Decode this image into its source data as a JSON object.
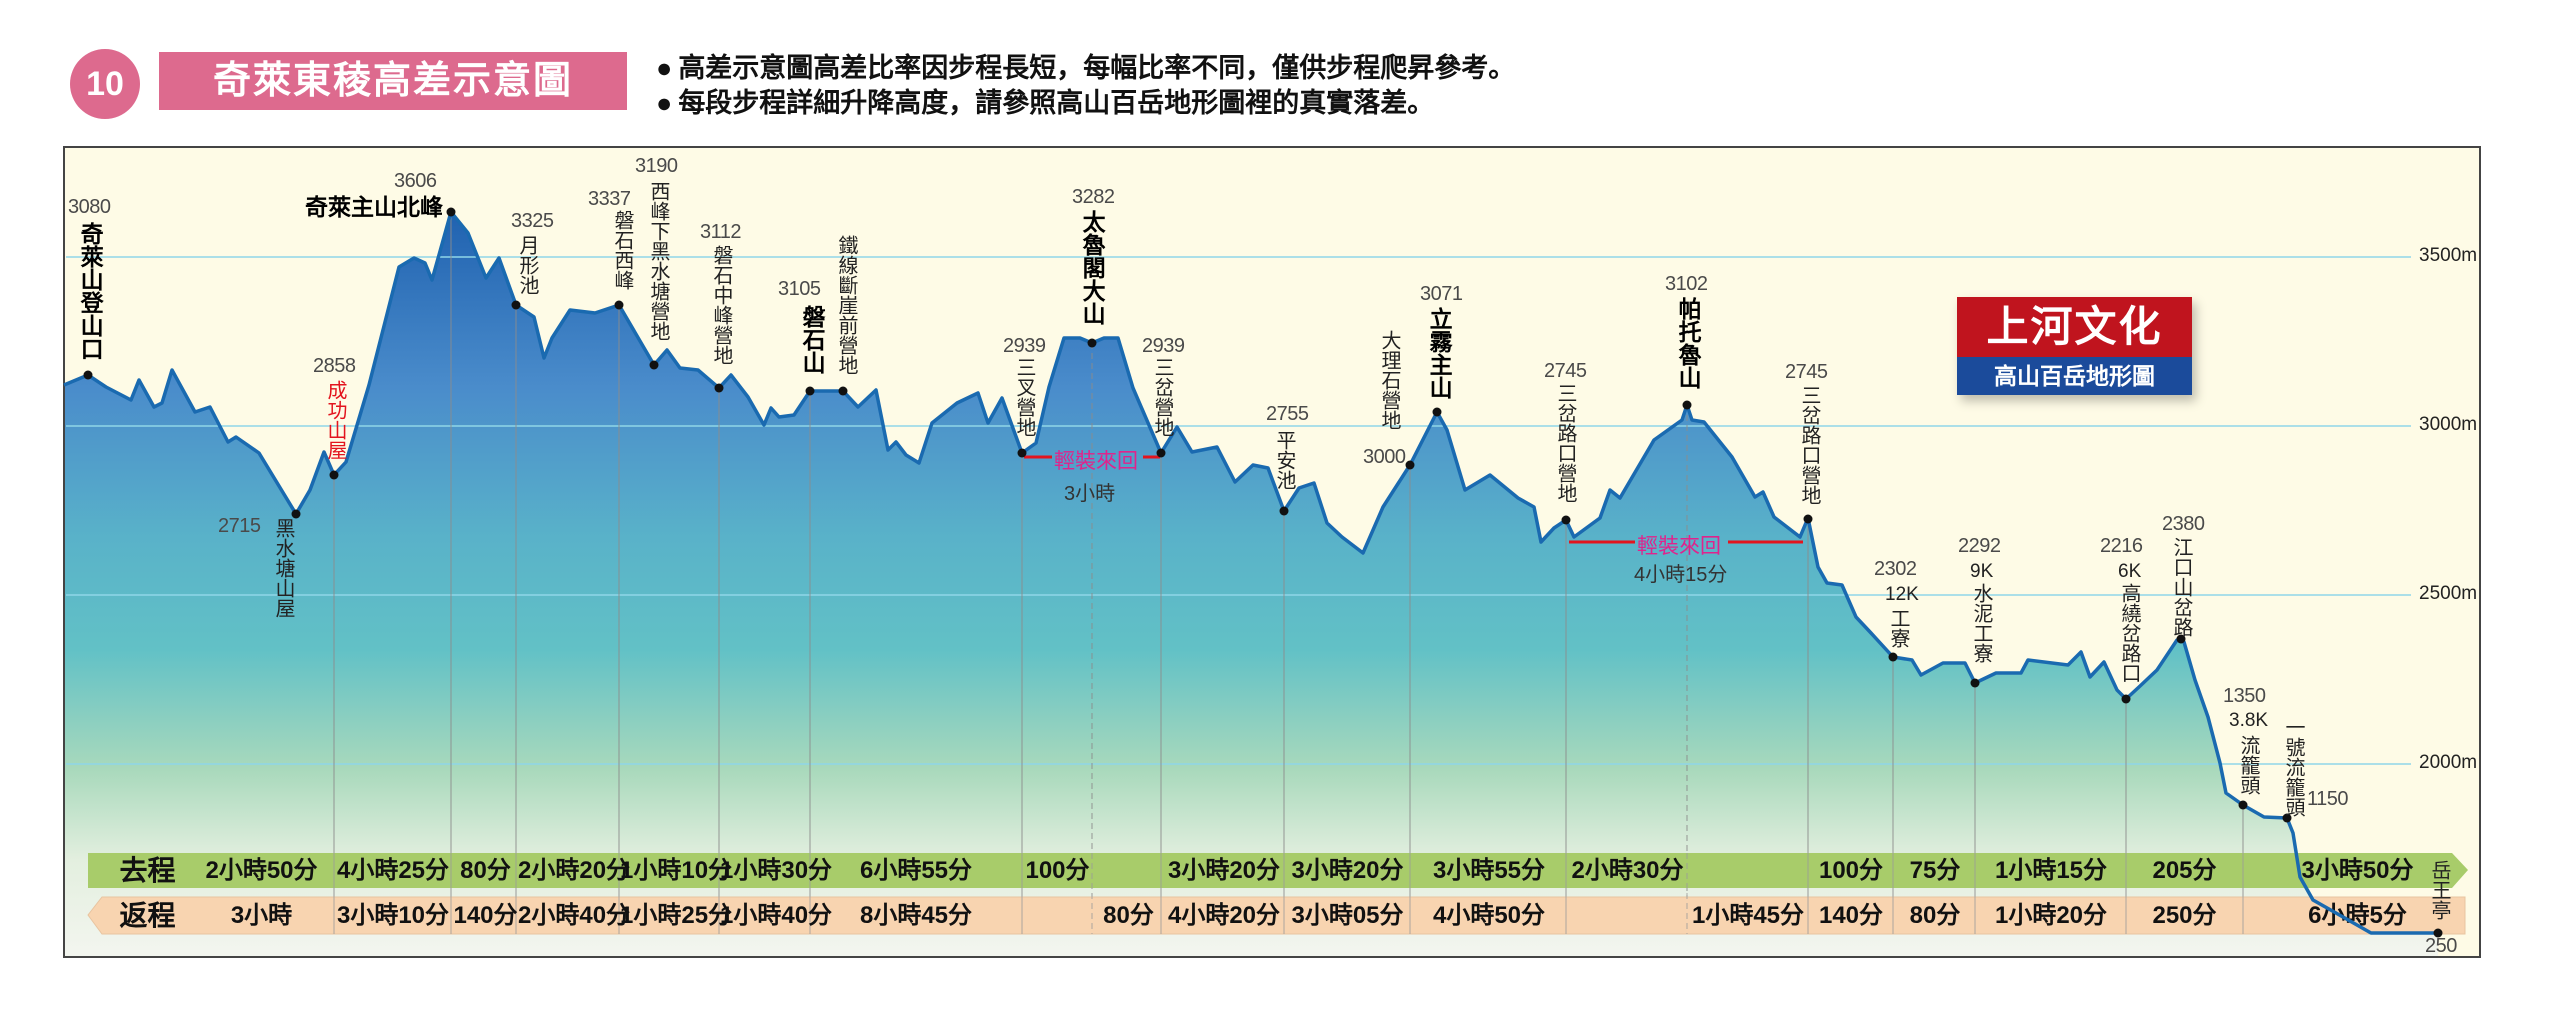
{
  "header": {
    "number": "10",
    "title": "奇萊東稜高差示意圖",
    "notes": [
      "高差示意圖高差比率因步程長短，每幅比率不同，僅供步程爬昇參考。",
      "每段步程詳細升降高度，請參照高山百岳地形圖裡的真實落差。"
    ]
  },
  "logo": {
    "brand": "上河文化",
    "subtitle": "高山百岳地形圖"
  },
  "colors": {
    "accent_pink": "#dd6a8e",
    "profile_line": "#1a6ab0",
    "outbound_band": "#a8cc6a",
    "return_band": "#f8d4b0",
    "highlight_red": "#e3141e",
    "round_trip_magenta": "#e0238c"
  },
  "chart_data": {
    "type": "area",
    "title": "奇萊東稜高差示意圖",
    "y_axis": {
      "unit": "m",
      "ticks": [
        "3500m",
        "3000m",
        "2500m",
        "2000m"
      ],
      "tick_values": [
        3500,
        3000,
        2500,
        2000
      ]
    },
    "waypoints": [
      {
        "name": "奇萊山登山口",
        "elevation": 3080
      },
      {
        "name": "黑水塘山屋",
        "elevation": 2715
      },
      {
        "name": "成功山屋",
        "elevation": 2858
      },
      {
        "name": "奇萊主山北峰",
        "elevation": 3606
      },
      {
        "name": "月形池",
        "elevation": 3325
      },
      {
        "name": "磐石西峰",
        "elevation": 3337
      },
      {
        "name": "西峰下黑水塘營地",
        "elevation": 3190
      },
      {
        "name": "磐石中峰營地",
        "elevation": 3112
      },
      {
        "name": "磐石山",
        "elevation": 3105
      },
      {
        "name": "鐵線斷崖前營地",
        "elevation": null
      },
      {
        "name": "三叉營地",
        "elevation": 2939
      },
      {
        "name": "太魯閣大山",
        "elevation": 3282
      },
      {
        "name": "三岔營地",
        "elevation": 2939
      },
      {
        "name": "平安池",
        "elevation": 2755
      },
      {
        "name": "大理石營地",
        "elevation": 3000
      },
      {
        "name": "立霧主山",
        "elevation": 3071
      },
      {
        "name": "三岔路口營地",
        "elevation": 2745
      },
      {
        "name": "帕托魯山",
        "elevation": 3102
      },
      {
        "name": "三岔路口營地",
        "elevation": 2745
      },
      {
        "name": "工寮",
        "elevation": 2302,
        "km": "12K"
      },
      {
        "name": "水泥工寮",
        "elevation": 2292,
        "km": "9K"
      },
      {
        "name": "高繞岔路口",
        "elevation": 2216,
        "km": "6K"
      },
      {
        "name": "江口山岔路",
        "elevation": 2380
      },
      {
        "name": "流籠頭",
        "elevation": 1350,
        "km": "3.8K"
      },
      {
        "name": "一號流籠頭",
        "elevation": 1150
      },
      {
        "name": "岳王亭",
        "elevation": 250
      }
    ],
    "round_trips": [
      {
        "label": "輕裝來回",
        "time": "3小時",
        "from": "三叉營地",
        "to": "三岔營地"
      },
      {
        "label": "輕裝來回",
        "time": "4小時15分",
        "from": "三岔路口營地",
        "to": "三岔路口營地"
      }
    ],
    "outbound": {
      "label": "去程",
      "segments": [
        "2小時50分",
        "4小時25分",
        "80分",
        "2小時20分",
        "1小時10分",
        "1小時30分",
        "6小時55分",
        "100分",
        "",
        "3小時20分",
        "3小時20分",
        "3小時55分",
        "2小時30分",
        "",
        "100分",
        "75分",
        "1小時15分",
        "205分",
        "3小時50分"
      ]
    },
    "return": {
      "label": "返程",
      "segments": [
        "3小時",
        "3小時10分",
        "140分",
        "2小時40分",
        "1小時25分",
        "1小時40分",
        "8小時45分",
        "",
        "80分",
        "4小時20分",
        "3小時05分",
        "4小時50分",
        "",
        "1小時45分",
        "140分",
        "80分",
        "1小時20分",
        "250分",
        "6小時5分"
      ]
    }
  }
}
